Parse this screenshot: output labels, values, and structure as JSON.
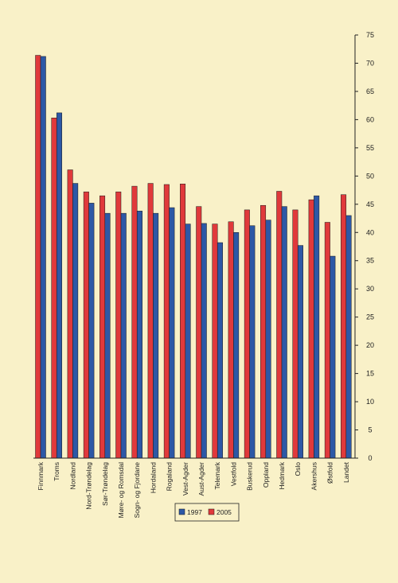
{
  "chart_data": {
    "type": "bar",
    "title": "",
    "xlabel": "",
    "ylabel": "",
    "ylim": [
      0,
      75
    ],
    "yticks": [
      0,
      5,
      10,
      15,
      20,
      25,
      30,
      35,
      40,
      45,
      50,
      55,
      60,
      65,
      70,
      75
    ],
    "y_axis_side": "right",
    "grid": false,
    "legend_position": "bottom-center",
    "categories": [
      "Finnmark",
      "Troms",
      "Nordland",
      "Nord-Trøndelag",
      "Sør-Trøndelag",
      "Møre- og Romsdal",
      "Sogn- og Fjordane",
      "Hordaland",
      "Rogaland",
      "Vest-Agder",
      "Aust-Agder",
      "Telemark",
      "Vestfold",
      "Buskerud",
      "Oppland",
      "Hedmark",
      "Oslo",
      "Akershus",
      "Østfold",
      "Landet"
    ],
    "series": [
      {
        "name": "1997",
        "color": "#2d58a6",
        "values": [
          71.2,
          61.2,
          48.7,
          45.2,
          43.4,
          43.4,
          43.8,
          43.4,
          44.4,
          41.5,
          41.6,
          38.2,
          40.0,
          41.2,
          42.2,
          44.6,
          37.7,
          46.5,
          35.8,
          43.0
        ]
      },
      {
        "name": "2005",
        "color": "#e0393b",
        "values": [
          71.4,
          60.3,
          51.1,
          47.2,
          46.5,
          47.2,
          48.2,
          48.7,
          48.5,
          48.6,
          44.6,
          41.5,
          41.9,
          44.0,
          44.8,
          47.3,
          44.0,
          45.8,
          41.8,
          46.7
        ]
      }
    ]
  }
}
